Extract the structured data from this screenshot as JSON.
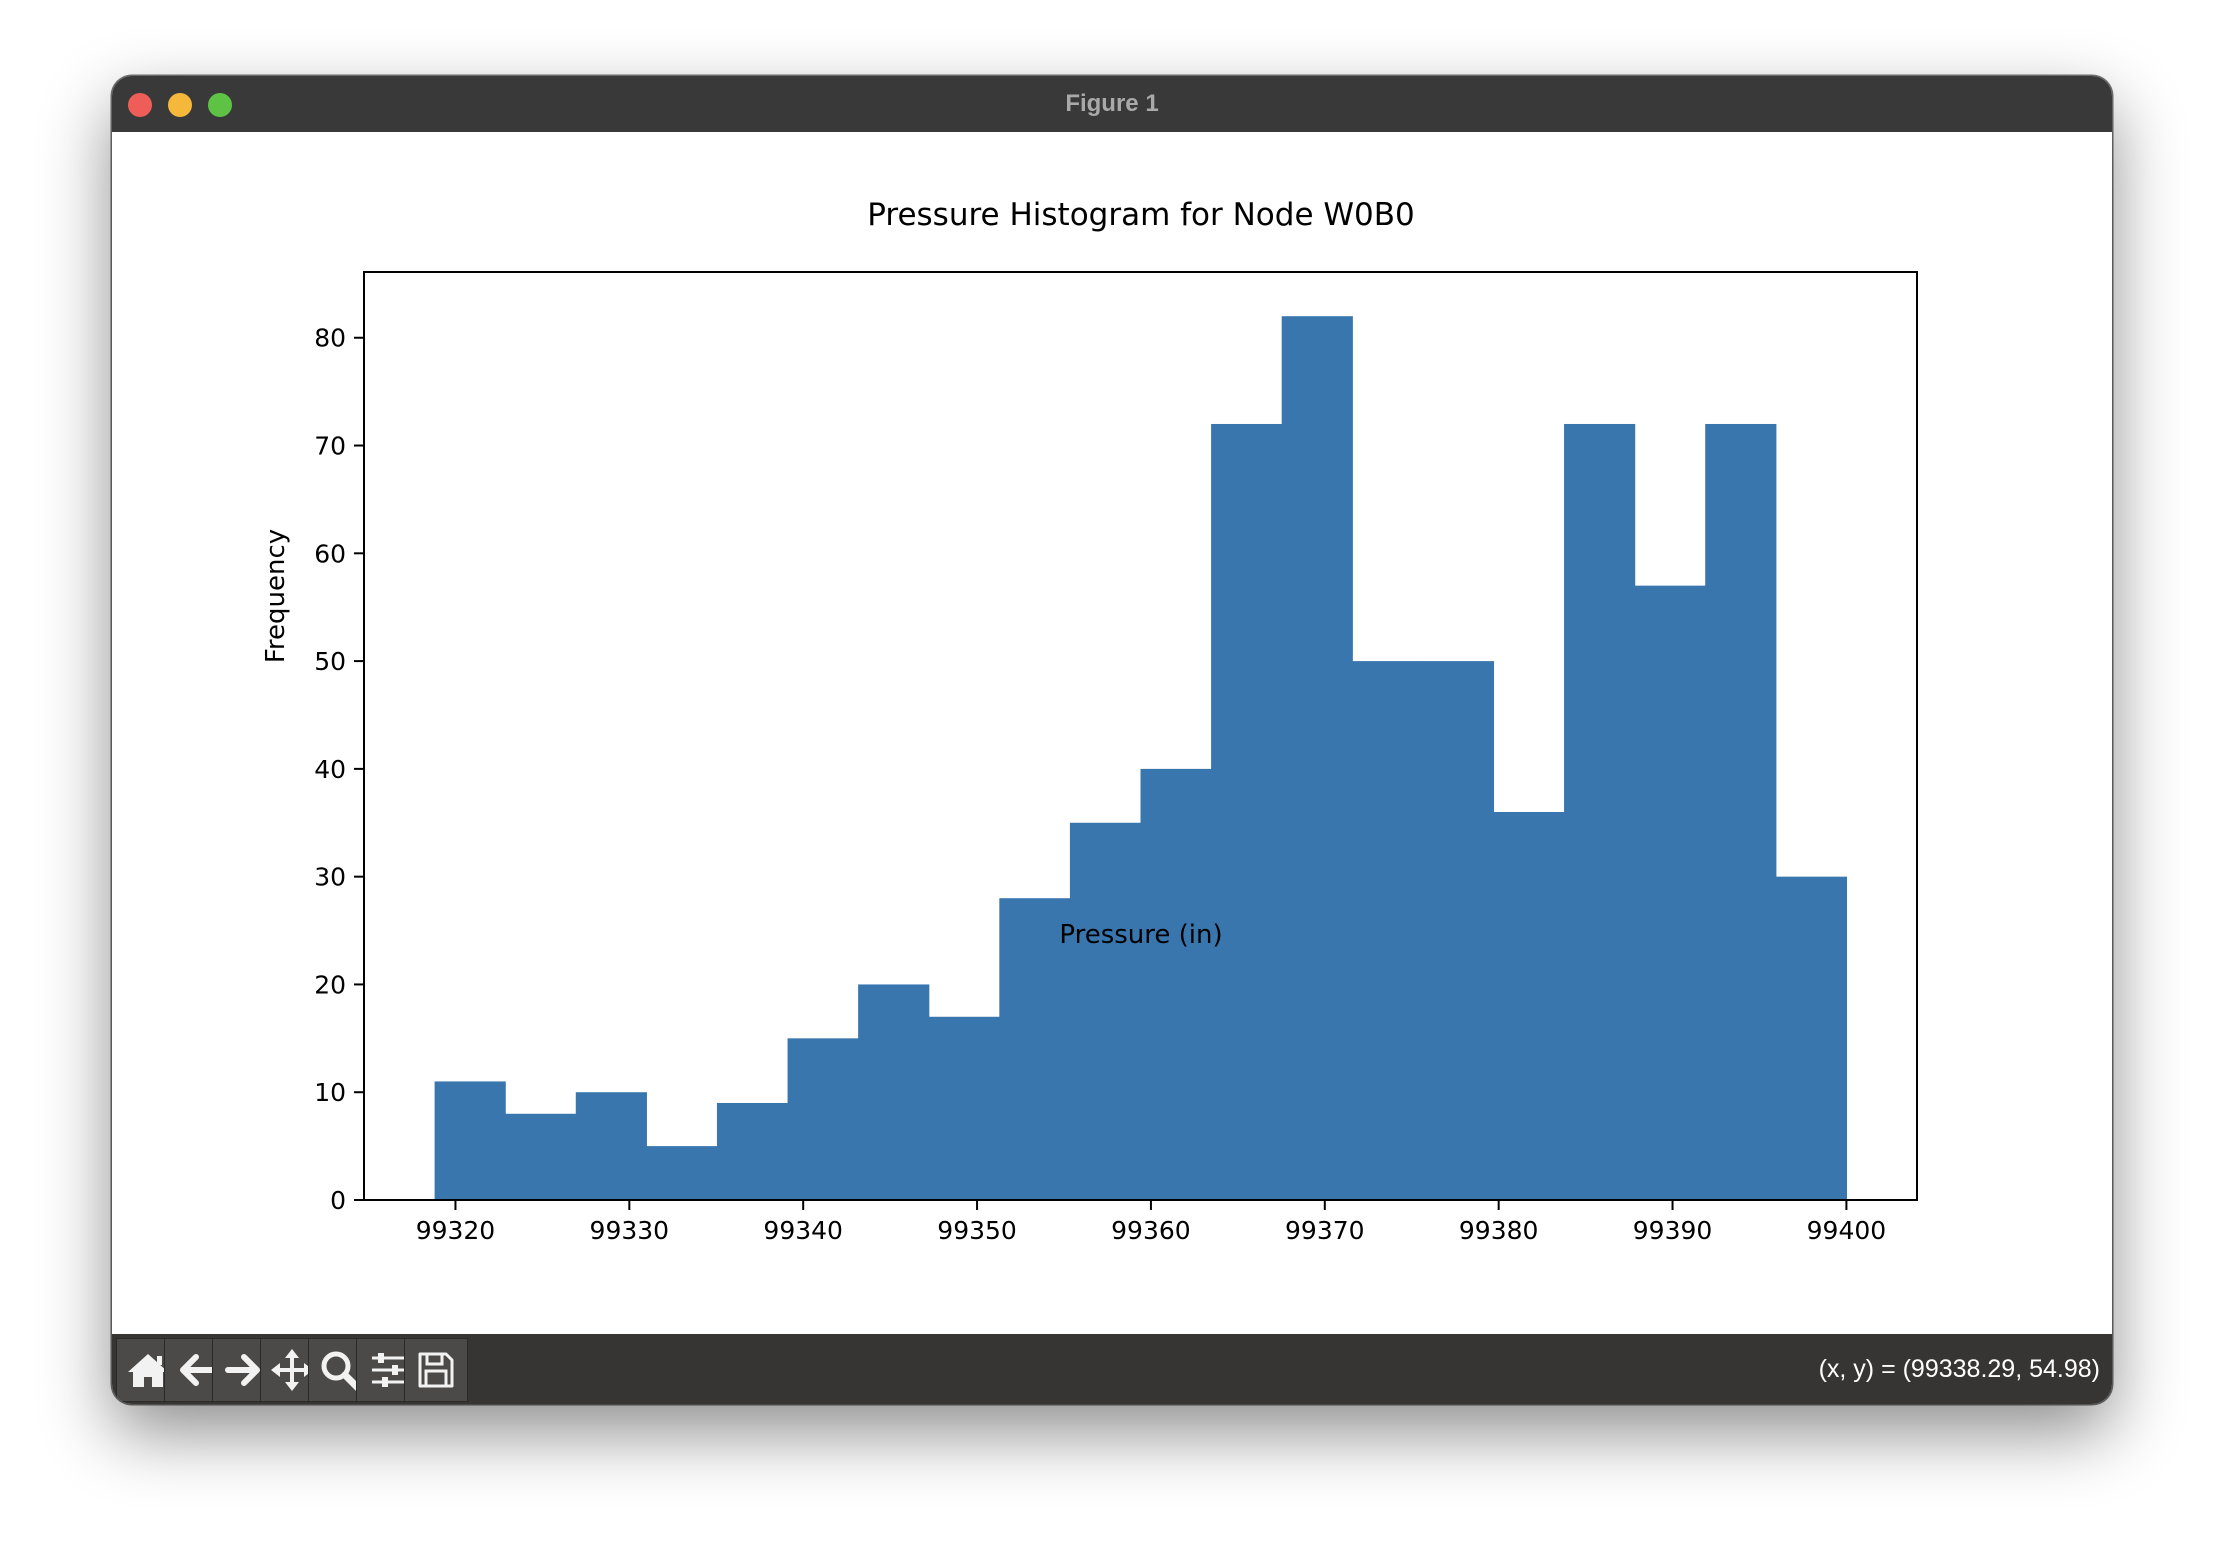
{
  "window": {
    "title": "Figure 1"
  },
  "toolbar": {
    "buttons": [
      {
        "name": "home",
        "icon": "home-icon"
      },
      {
        "name": "back",
        "icon": "arrow-left-icon"
      },
      {
        "name": "forward",
        "icon": "arrow-right-icon"
      },
      {
        "name": "pan",
        "icon": "move-icon"
      },
      {
        "name": "zoom",
        "icon": "magnifier-icon"
      },
      {
        "name": "configure-subplots",
        "icon": "sliders-icon"
      },
      {
        "name": "save",
        "icon": "floppy-disk-icon"
      }
    ],
    "coords": "(x, y) = (99338.29, 54.98)"
  },
  "chart_data": {
    "type": "bar",
    "title": "Pressure Histogram for Node W0B0",
    "xlabel": "Pressure (in)",
    "ylabel": "Frequency",
    "bar_color": "#3a76ae",
    "bin_edges": [
      99318.8,
      99322.86,
      99326.92,
      99330.98,
      99335.04,
      99339.1,
      99343.16,
      99347.22,
      99351.28,
      99355.34,
      99359.4,
      99363.46,
      99367.52,
      99371.58,
      99375.64,
      99379.7,
      99383.76,
      99387.82,
      99391.88,
      99395.94,
      99400.0
    ],
    "values": [
      11,
      8,
      10,
      5,
      9,
      15,
      20,
      17,
      28,
      35,
      40,
      72,
      82,
      50,
      50,
      36,
      72,
      57,
      72,
      30
    ],
    "xlim": [
      99314.74,
      99404.06
    ],
    "ylim": [
      0,
      86.1
    ],
    "xticks": [
      99320,
      99330,
      99340,
      99350,
      99360,
      99370,
      99380,
      99390,
      99400
    ],
    "yticks": [
      0,
      10,
      20,
      30,
      40,
      50,
      60,
      70,
      80
    ],
    "grid": false
  }
}
